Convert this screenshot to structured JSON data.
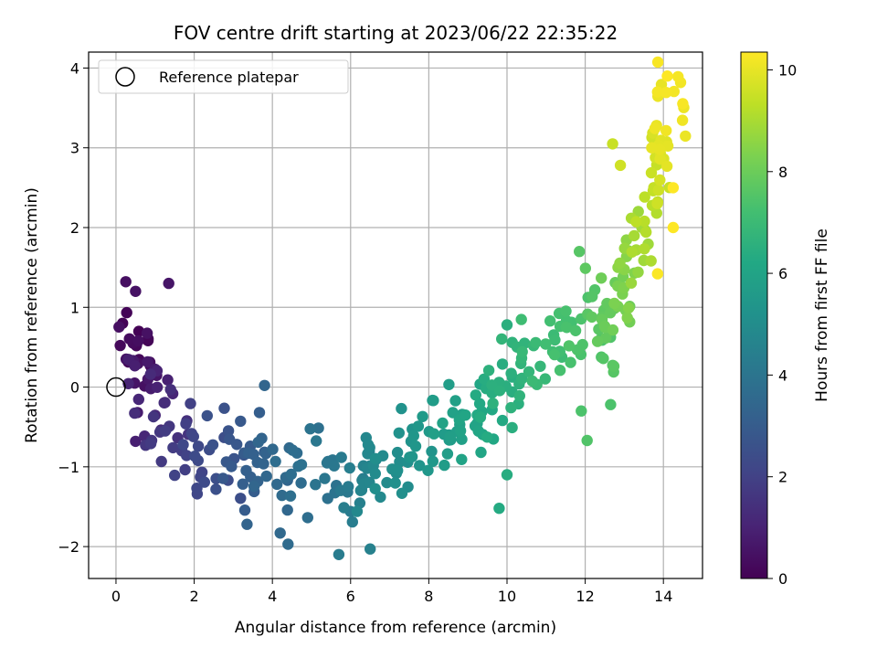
{
  "chart_data": {
    "type": "scatter",
    "title": "FOV centre drift starting at 2023/06/22 22:35:22",
    "xlabel": "Angular distance from reference (arcmin)",
    "ylabel": "Rotation from reference (arcmin)",
    "xlim": [
      -0.7,
      15.0
    ],
    "ylim": [
      -2.4,
      4.2
    ],
    "xticks": [
      0,
      2,
      4,
      6,
      8,
      10,
      12,
      14
    ],
    "yticks": [
      -2,
      -1,
      0,
      1,
      2,
      3,
      4
    ],
    "grid": true,
    "legend": {
      "placement": "top-left",
      "entries": [
        "Reference platepar"
      ]
    },
    "reference_point": {
      "x": 0,
      "y": 0
    },
    "colorbar": {
      "label": "Hours from first FF file",
      "range": [
        0,
        10.35
      ],
      "ticks": [
        0,
        2,
        4,
        6,
        8,
        10
      ],
      "colormap": "viridis"
    },
    "anchors": [
      {
        "x": 0.3,
        "y": 0.7,
        "h": 0.0
      },
      {
        "x": 0.6,
        "y": 0.3,
        "h": 0.5
      },
      {
        "x": 1.0,
        "y": -0.3,
        "h": 1.2
      },
      {
        "x": 1.6,
        "y": -0.8,
        "h": 1.9
      },
      {
        "x": 2.5,
        "y": -1.0,
        "h": 2.5
      },
      {
        "x": 3.5,
        "y": -0.9,
        "h": 3.1
      },
      {
        "x": 4.4,
        "y": -1.0,
        "h": 3.6
      },
      {
        "x": 5.6,
        "y": -1.1,
        "h": 4.1
      },
      {
        "x": 6.6,
        "y": -1.2,
        "h": 4.7
      },
      {
        "x": 7.3,
        "y": -1.0,
        "h": 5.1
      },
      {
        "x": 8.2,
        "y": -0.6,
        "h": 5.6
      },
      {
        "x": 9.0,
        "y": -0.4,
        "h": 6.0
      },
      {
        "x": 9.7,
        "y": -0.1,
        "h": 6.4
      },
      {
        "x": 10.2,
        "y": 0.2,
        "h": 6.7
      },
      {
        "x": 11.3,
        "y": 0.7,
        "h": 7.2
      },
      {
        "x": 12.2,
        "y": 0.7,
        "h": 7.5
      },
      {
        "x": 12.6,
        "y": 0.9,
        "h": 7.9
      },
      {
        "x": 13.0,
        "y": 1.4,
        "h": 8.5
      },
      {
        "x": 13.5,
        "y": 2.1,
        "h": 9.2
      },
      {
        "x": 14.0,
        "y": 3.0,
        "h": 9.9
      },
      {
        "x": 14.2,
        "y": 3.8,
        "h": 10.3
      }
    ],
    "points_per_segment": 20,
    "scatter_x": [
      0.55,
      0.45,
      0.4,
      0.5,
      0.35,
      0.1
    ],
    "scatter_y": [
      0.4,
      0.45,
      0.4,
      0.45,
      0.4,
      0.35
    ],
    "outliers": [
      {
        "x": 1.35,
        "y": 1.3,
        "h": 0.6
      },
      {
        "x": 0.25,
        "y": 1.32,
        "h": 0.4
      },
      {
        "x": 0.5,
        "y": 1.2,
        "h": 0.5
      },
      {
        "x": 0.5,
        "y": -0.68,
        "h": 0.9
      },
      {
        "x": 5.7,
        "y": -2.1,
        "h": 4.3
      },
      {
        "x": 6.5,
        "y": -2.03,
        "h": 4.5
      },
      {
        "x": 3.35,
        "y": -1.72,
        "h": 3.3
      },
      {
        "x": 4.2,
        "y": -1.83,
        "h": 3.5
      },
      {
        "x": 4.4,
        "y": -1.97,
        "h": 3.6
      },
      {
        "x": 3.8,
        "y": 0.02,
        "h": 3.4
      },
      {
        "x": 7.3,
        "y": -0.27,
        "h": 5.2
      },
      {
        "x": 9.8,
        "y": -1.52,
        "h": 6.3
      },
      {
        "x": 10.0,
        "y": -1.1,
        "h": 6.4
      },
      {
        "x": 10.0,
        "y": 0.78,
        "h": 6.5
      },
      {
        "x": 11.85,
        "y": 1.7,
        "h": 7.6
      },
      {
        "x": 12.05,
        "y": -0.67,
        "h": 7.5
      },
      {
        "x": 11.9,
        "y": -0.3,
        "h": 7.4
      },
      {
        "x": 12.65,
        "y": -0.22,
        "h": 7.4
      },
      {
        "x": 12.7,
        "y": 3.05,
        "h": 9.5
      },
      {
        "x": 12.9,
        "y": 2.78,
        "h": 9.6
      },
      {
        "x": 13.7,
        "y": 3.0,
        "h": 10.0
      },
      {
        "x": 13.85,
        "y": 3.7,
        "h": 10.2
      },
      {
        "x": 14.25,
        "y": 2.5,
        "h": 10.35
      },
      {
        "x": 14.25,
        "y": 2.0,
        "h": 10.35
      },
      {
        "x": 13.85,
        "y": 1.42,
        "h": 10.3
      },
      {
        "x": 14.1,
        "y": 3.9,
        "h": 10.35
      }
    ]
  }
}
